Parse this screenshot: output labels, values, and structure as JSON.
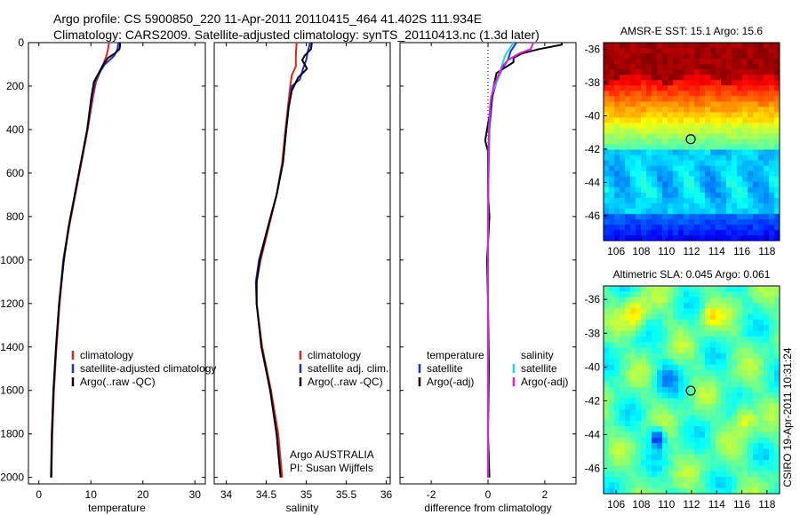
{
  "header": {
    "line1": "Argo profile: CS 5900850_220 11-Apr-2011 20110415_464 41.402S 111.934E",
    "line2": "Climatology: CARS2009. Satellite-adjusted climatology: synTS_20110413.nc (1.3d later)"
  },
  "credit": "CSIRO 19-Apr-2011 10:31:24",
  "colors": {
    "climatology": "#e8201a",
    "satellite": "#1f2fd6",
    "argo": "#000000",
    "satellite_salinity": "#19d8e6",
    "argo_salinity": "#e01ee0"
  },
  "chart_data": [
    {
      "type": "line",
      "panel": "temperature",
      "xlabel": "temperature",
      "ylabel": "",
      "xlim": [
        -2,
        32
      ],
      "ylim": [
        2030,
        0
      ],
      "xticks": [
        0,
        10,
        20,
        30
      ],
      "yticks": [
        0,
        200,
        400,
        600,
        800,
        1000,
        1200,
        1400,
        1600,
        1800,
        2000
      ],
      "legend": [
        "climatology",
        "satellite-adjusted climatology",
        "Argo(..raw -QC)"
      ],
      "series": [
        {
          "name": "climatology",
          "color": "#e8201a",
          "points": [
            [
              13.5,
              0
            ],
            [
              13.3,
              30
            ],
            [
              13.0,
              60
            ],
            [
              12.4,
              100
            ],
            [
              11.7,
              140
            ],
            [
              11.0,
              180
            ],
            [
              10.4,
              250
            ],
            [
              9.4,
              400
            ],
            [
              8.2,
              550
            ],
            [
              7.0,
              700
            ],
            [
              5.8,
              850
            ],
            [
              4.8,
              1000
            ],
            [
              4.0,
              1200
            ],
            [
              3.4,
              1400
            ],
            [
              2.9,
              1600
            ],
            [
              2.6,
              1800
            ],
            [
              2.4,
              2000
            ]
          ]
        },
        {
          "name": "satellite-adjusted climatology",
          "color": "#1f2fd6",
          "points": [
            [
              15.3,
              0
            ],
            [
              15.1,
              30
            ],
            [
              14.5,
              60
            ],
            [
              12.7,
              100
            ],
            [
              11.6,
              140
            ],
            [
              10.8,
              180
            ],
            [
              10.2,
              250
            ],
            [
              9.3,
              400
            ],
            [
              8.1,
              550
            ],
            [
              6.9,
              700
            ],
            [
              5.7,
              850
            ],
            [
              4.7,
              1000
            ],
            [
              3.9,
              1200
            ],
            [
              3.3,
              1400
            ],
            [
              2.8,
              1600
            ],
            [
              2.5,
              1800
            ],
            [
              2.3,
              2000
            ]
          ]
        },
        {
          "name": "Argo(..raw -QC)",
          "color": "#000000",
          "points": [
            [
              15.6,
              0
            ],
            [
              15.6,
              15
            ],
            [
              15.5,
              30
            ],
            [
              14.6,
              50
            ],
            [
              13.3,
              70
            ],
            [
              12.4,
              100
            ],
            [
              11.5,
              140
            ],
            [
              10.6,
              180
            ],
            [
              10.1,
              250
            ],
            [
              9.3,
              400
            ],
            [
              8.1,
              550
            ],
            [
              6.9,
              700
            ],
            [
              5.7,
              850
            ],
            [
              4.8,
              1000
            ],
            [
              3.9,
              1200
            ],
            [
              3.3,
              1400
            ],
            [
              2.8,
              1600
            ],
            [
              2.5,
              1800
            ],
            [
              2.4,
              2000
            ]
          ]
        }
      ]
    },
    {
      "type": "line",
      "panel": "salinity",
      "xlabel": "salinity",
      "ylabel": "",
      "xlim": [
        33.85,
        36.05
      ],
      "ylim": [
        2030,
        0
      ],
      "xticks": [
        34,
        34.5,
        35,
        35.5,
        36
      ],
      "legend": [
        "climatology",
        "satellite adj. clim.",
        "Argo(..raw -QC)"
      ],
      "annotation": [
        "Argo AUSTRALIA",
        "PI: Susan Wijffels"
      ],
      "series": [
        {
          "name": "climatology",
          "color": "#e8201a",
          "points": [
            [
              34.88,
              0
            ],
            [
              34.87,
              60
            ],
            [
              34.87,
              110
            ],
            [
              34.82,
              150
            ],
            [
              34.8,
              200
            ],
            [
              34.77,
              300
            ],
            [
              34.74,
              400
            ],
            [
              34.7,
              550
            ],
            [
              34.63,
              700
            ],
            [
              34.53,
              850
            ],
            [
              34.43,
              1000
            ],
            [
              34.38,
              1100
            ],
            [
              34.38,
              1200
            ],
            [
              34.45,
              1400
            ],
            [
              34.56,
              1600
            ],
            [
              34.65,
              1800
            ],
            [
              34.7,
              2000
            ]
          ]
        },
        {
          "name": "satellite adj. clim.",
          "color": "#1f2fd6",
          "points": [
            [
              35.05,
              0
            ],
            [
              35.02,
              40
            ],
            [
              35.0,
              80
            ],
            [
              34.96,
              120
            ],
            [
              34.92,
              170
            ],
            [
              34.82,
              200
            ],
            [
              34.78,
              300
            ],
            [
              34.75,
              400
            ],
            [
              34.71,
              550
            ],
            [
              34.63,
              700
            ],
            [
              34.52,
              850
            ],
            [
              34.41,
              1000
            ],
            [
              34.37,
              1100
            ],
            [
              34.38,
              1200
            ],
            [
              34.44,
              1400
            ],
            [
              34.55,
              1600
            ],
            [
              34.63,
              1800
            ],
            [
              34.68,
              2000
            ]
          ]
        },
        {
          "name": "Argo(..raw -QC)",
          "color": "#000000",
          "points": [
            [
              35.07,
              0
            ],
            [
              35.06,
              30
            ],
            [
              34.98,
              60
            ],
            [
              34.95,
              80
            ],
            [
              35.01,
              120
            ],
            [
              34.9,
              160
            ],
            [
              34.82,
              220
            ],
            [
              34.78,
              300
            ],
            [
              34.75,
              400
            ],
            [
              34.71,
              550
            ],
            [
              34.63,
              700
            ],
            [
              34.52,
              850
            ],
            [
              34.42,
              1000
            ],
            [
              34.38,
              1100
            ],
            [
              34.38,
              1200
            ],
            [
              34.44,
              1400
            ],
            [
              34.55,
              1600
            ],
            [
              34.63,
              1800
            ],
            [
              34.68,
              2000
            ]
          ]
        }
      ]
    },
    {
      "type": "line",
      "panel": "difference",
      "xlabel": "difference from climatology",
      "ylabel": "",
      "xlim": [
        -3.1,
        3.1
      ],
      "ylim": [
        2030,
        0
      ],
      "xticks": [
        -2,
        0,
        2
      ],
      "legend_titles": [
        "temperature",
        "salinity"
      ],
      "legend": [
        "satellite",
        "Argo(-adj)",
        "satellite",
        "Argo(-adj)"
      ],
      "series": [
        {
          "name": "satellite",
          "group": "temperature",
          "color": "#1f2fd6",
          "points": [
            [
              1.0,
              0
            ],
            [
              0.8,
              40
            ],
            [
              0.7,
              80
            ],
            [
              0.5,
              120
            ],
            [
              0.3,
              180
            ],
            [
              0.15,
              250
            ],
            [
              0.05,
              400
            ],
            [
              0.02,
              600
            ],
            [
              0.0,
              800
            ],
            [
              0.0,
              1000
            ],
            [
              0.0,
              1400
            ],
            [
              0.0,
              2000
            ]
          ]
        },
        {
          "name": "Argo(-adj)",
          "group": "temperature",
          "color": "#000000",
          "points": [
            [
              2.6,
              0
            ],
            [
              2.6,
              10
            ],
            [
              1.8,
              30
            ],
            [
              1.2,
              50
            ],
            [
              0.9,
              70
            ],
            [
              0.9,
              90
            ],
            [
              0.3,
              140
            ],
            [
              0.2,
              200
            ],
            [
              0.1,
              300
            ],
            [
              -0.1,
              450
            ],
            [
              0.0,
              500
            ],
            [
              0.0,
              700
            ],
            [
              0.05,
              800
            ],
            [
              -0.03,
              1000
            ],
            [
              0.0,
              1200
            ],
            [
              0.03,
              1500
            ],
            [
              0.0,
              1800
            ],
            [
              0.05,
              2000
            ]
          ]
        },
        {
          "name": "satellite",
          "group": "salinity",
          "color": "#19d8e6",
          "points": [
            [
              0.9,
              0
            ],
            [
              0.6,
              60
            ],
            [
              0.5,
              100
            ],
            [
              0.45,
              130
            ],
            [
              0.3,
              180
            ],
            [
              0.1,
              250
            ],
            [
              0.05,
              350
            ],
            [
              0.02,
              500
            ],
            [
              0.0,
              800
            ],
            [
              0.0,
              1000
            ],
            [
              0.0,
              1400
            ],
            [
              0.0,
              2000
            ]
          ]
        },
        {
          "name": "Argo(-adj)",
          "group": "salinity",
          "color": "#e01ee0",
          "points": [
            [
              1.6,
              0
            ],
            [
              1.5,
              30
            ],
            [
              1.1,
              50
            ],
            [
              0.7,
              80
            ],
            [
              0.5,
              110
            ],
            [
              0.4,
              140
            ],
            [
              0.2,
              200
            ],
            [
              0.08,
              280
            ],
            [
              0.03,
              400
            ],
            [
              0.02,
              600
            ],
            [
              0.0,
              800
            ],
            [
              0.0,
              1400
            ],
            [
              0.0,
              2000
            ]
          ]
        }
      ]
    },
    {
      "type": "heatmap",
      "panel": "sst",
      "title": "AMSR-E SST: 15.1 Argo: 15.6",
      "xlim": [
        105,
        119
      ],
      "ylim": [
        -47.5,
        -35.6
      ],
      "xticks": [
        106,
        108,
        110,
        112,
        114,
        116,
        118
      ],
      "yticks": [
        -36,
        -38,
        -40,
        -42,
        -44,
        -46
      ],
      "profile_location": [
        111.934,
        -41.402
      ]
    },
    {
      "type": "heatmap",
      "panel": "sla",
      "title": "Altimetric SLA: 0.045 Argo: 0.061",
      "xlim": [
        105,
        119
      ],
      "ylim": [
        -47.5,
        -35.2
      ],
      "xticks": [
        106,
        108,
        110,
        112,
        114,
        116,
        118
      ],
      "yticks": [
        -36,
        -38,
        -40,
        -42,
        -44,
        -46
      ],
      "profile_location": [
        111.934,
        -41.402
      ]
    }
  ]
}
